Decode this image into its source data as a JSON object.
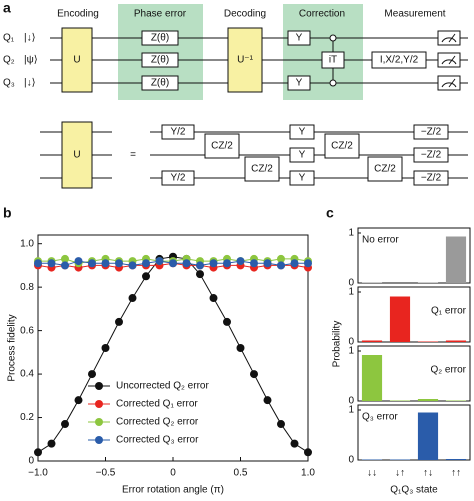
{
  "panel_labels": [
    "a",
    "b",
    "c"
  ],
  "circuit": {
    "stages": [
      "Encoding",
      "Phase error",
      "Decoding",
      "Correction",
      "Measurement"
    ],
    "qubits": [
      {
        "name": "Q₁",
        "state": "|↓⟩",
        "color": "#e8251f"
      },
      {
        "name": "Q₂",
        "state": "|ψ⟩",
        "color": "#6ab023"
      },
      {
        "name": "Q₃",
        "state": "|↓⟩",
        "color": "#3b6cc4"
      }
    ],
    "gates": [
      "U",
      "Z(θ)",
      "Z(θ)",
      "Z(θ)",
      "U⁻¹",
      "Y",
      "iT",
      "Y",
      "I,X/2,Y/2"
    ],
    "decomposition": {
      "lhs": "U",
      "equals": "=",
      "gates": [
        "Y/2",
        "Y/2",
        "CZ/2",
        "CZ/2",
        "Y",
        "Y",
        "Y",
        "CZ/2",
        "CZ/2",
        "−Z/2",
        "−Z/2",
        "−Z/2"
      ]
    }
  },
  "chart_data": [
    {
      "type": "line",
      "xlabel": "Error rotation angle (π)",
      "ylabel": "Process fidelity",
      "x": [
        -1,
        -0.9,
        -0.8,
        -0.7,
        -0.6,
        -0.5,
        -0.4,
        -0.3,
        -0.2,
        -0.1,
        0,
        0.1,
        0.2,
        0.3,
        0.4,
        0.5,
        0.6,
        0.7,
        0.8,
        0.9,
        1
      ],
      "xlim": [
        -1,
        1
      ],
      "ylim": [
        0,
        1.04
      ],
      "xticks": [
        {
          "value": -1,
          "label": "−1.0"
        },
        {
          "value": -0.5,
          "label": "−0.5"
        },
        0,
        0.5,
        {
          "value": 1,
          "label": "1.0"
        }
      ],
      "yticks": [
        0,
        0.2,
        0.4,
        0.6,
        0.8,
        {
          "value": 1,
          "label": "1.0"
        }
      ],
      "legend": "bottom",
      "series": [
        {
          "name": "Uncorrected Q₂ error",
          "color": "#111111",
          "values": [
            0.04,
            0.08,
            0.17,
            0.28,
            0.4,
            0.52,
            0.64,
            0.75,
            0.85,
            0.93,
            0.94,
            0.93,
            0.86,
            0.75,
            0.64,
            0.52,
            0.4,
            0.28,
            0.17,
            0.08,
            0.04
          ]
        },
        {
          "name": "Corrected Q₁ error",
          "color": "#e8251f",
          "values": [
            0.9,
            0.89,
            0.9,
            0.89,
            0.9,
            0.9,
            0.89,
            0.9,
            0.9,
            0.9,
            0.91,
            0.9,
            0.9,
            0.89,
            0.9,
            0.9,
            0.89,
            0.9,
            0.9,
            0.9,
            0.89
          ]
        },
        {
          "name": "Corrected Q₂ error",
          "color": "#8dc63f",
          "values": [
            0.92,
            0.92,
            0.93,
            0.91,
            0.92,
            0.93,
            0.92,
            0.92,
            0.93,
            0.92,
            0.92,
            0.93,
            0.92,
            0.92,
            0.93,
            0.92,
            0.93,
            0.92,
            0.93,
            0.93,
            0.92
          ]
        },
        {
          "name": "Corrected Q₃ error",
          "color": "#2a5caa",
          "values": [
            0.91,
            0.91,
            0.9,
            0.92,
            0.91,
            0.91,
            0.91,
            0.9,
            0.91,
            0.92,
            0.91,
            0.91,
            0.9,
            0.91,
            0.91,
            0.92,
            0.91,
            0.91,
            0.9,
            0.91,
            0.91
          ]
        }
      ]
    },
    {
      "type": "bar_stack_panels",
      "xlabel": "Q₁Q₃ state",
      "ylabel": "Probability",
      "categories": [
        "↓↓",
        "↓↑",
        "↑↓",
        "↑↑"
      ],
      "ylim": [
        0,
        1.1
      ],
      "yticks": [
        0,
        1
      ],
      "panels": [
        {
          "annotation": "No error",
          "label_corner": "top-left",
          "color": "#9a9a9a",
          "values": [
            0.01,
            0.0,
            0.01,
            0.93
          ]
        },
        {
          "annotation": "Q₁ error",
          "label_corner": "top-right",
          "color": "#e8251f",
          "values": [
            0.03,
            0.91,
            0.01,
            0.03
          ]
        },
        {
          "annotation": "Q₂ error",
          "label_corner": "top-right",
          "color": "#8dc63f",
          "values": [
            0.92,
            0.01,
            0.04,
            0.01
          ]
        },
        {
          "annotation": "Q₃ error",
          "label_corner": "top-left",
          "color": "#2a5caa",
          "values": [
            0.01,
            0.01,
            0.95,
            0.02
          ]
        }
      ]
    }
  ]
}
